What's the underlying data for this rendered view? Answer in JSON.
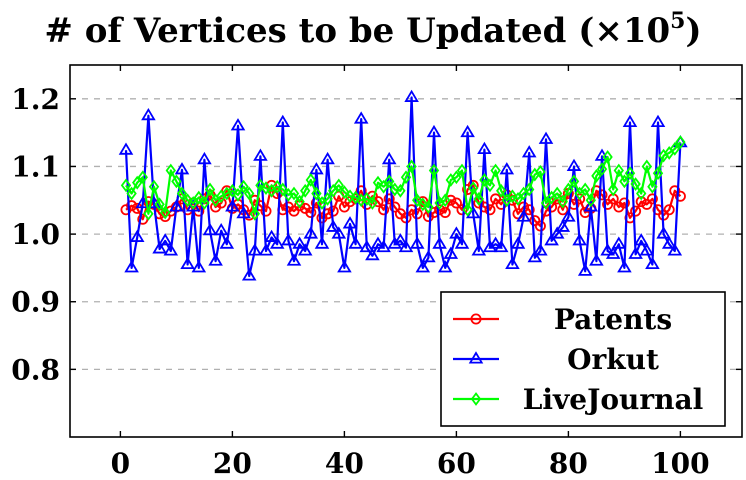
{
  "chart_data": {
    "type": "line",
    "title": "# of Vertices to be Updated (×10",
    "title_sup": "5",
    "title_close": ")",
    "xlabel": "",
    "ylabel": "",
    "xlim": [
      -9,
      111
    ],
    "ylim": [
      0.7,
      1.25
    ],
    "xticks": [
      0,
      20,
      40,
      60,
      80,
      100
    ],
    "yticks": [
      0.8,
      0.9,
      1.0,
      1.1,
      1.2
    ],
    "ytick_labels": [
      "0.8",
      "0.9",
      "1.0",
      "1.1",
      "1.2"
    ],
    "grid": "horizontal-dashed",
    "legend_position": "bottom-right",
    "x": [
      1,
      2,
      3,
      4,
      5,
      6,
      7,
      8,
      9,
      10,
      11,
      12,
      13,
      14,
      15,
      16,
      17,
      18,
      19,
      20,
      21,
      22,
      23,
      24,
      25,
      26,
      27,
      28,
      29,
      30,
      31,
      32,
      33,
      34,
      35,
      36,
      37,
      38,
      39,
      40,
      41,
      42,
      43,
      44,
      45,
      46,
      47,
      48,
      49,
      50,
      51,
      52,
      53,
      54,
      55,
      56,
      57,
      58,
      59,
      60,
      61,
      62,
      63,
      64,
      65,
      66,
      67,
      68,
      69,
      70,
      71,
      72,
      73,
      74,
      75,
      76,
      77,
      78,
      79,
      80,
      81,
      82,
      83,
      84,
      85,
      86,
      87,
      88,
      89,
      90,
      91,
      92,
      93,
      94,
      95,
      96,
      97,
      98,
      99,
      100
    ],
    "series": [
      {
        "name": "Patents",
        "color": "#ff0000",
        "marker": "circle",
        "values": [
          1.036,
          1.042,
          1.038,
          1.022,
          1.048,
          1.044,
          1.03,
          1.026,
          1.034,
          1.04,
          1.052,
          1.036,
          1.046,
          1.034,
          1.052,
          1.058,
          1.04,
          1.046,
          1.064,
          1.038,
          1.044,
          1.036,
          1.028,
          1.05,
          1.042,
          1.034,
          1.072,
          1.06,
          1.036,
          1.04,
          1.034,
          1.042,
          1.038,
          1.032,
          1.046,
          1.024,
          1.03,
          1.034,
          1.056,
          1.04,
          1.048,
          1.052,
          1.064,
          1.044,
          1.056,
          1.048,
          1.036,
          1.052,
          1.04,
          1.03,
          1.024,
          1.036,
          1.03,
          1.048,
          1.026,
          1.032,
          1.036,
          1.032,
          1.05,
          1.046,
          1.036,
          1.066,
          1.072,
          1.046,
          1.04,
          1.036,
          1.052,
          1.044,
          1.058,
          1.05,
          1.03,
          1.04,
          1.036,
          1.02,
          1.012,
          1.034,
          1.04,
          1.052,
          1.036,
          1.06,
          1.044,
          1.052,
          1.032,
          1.038,
          1.064,
          1.058,
          1.044,
          1.052,
          1.04,
          1.046,
          1.024,
          1.034,
          1.048,
          1.044,
          1.052,
          1.036,
          1.028,
          1.036,
          1.064,
          1.056
        ]
      },
      {
        "name": "Orkut",
        "color": "#0000ff",
        "marker": "triangle",
        "values": [
          1.124,
          0.95,
          0.995,
          1.045,
          1.175,
          1.045,
          0.978,
          0.99,
          0.975,
          1.04,
          1.095,
          0.955,
          1.04,
          0.95,
          1.11,
          1.005,
          0.96,
          1.005,
          0.985,
          1.04,
          1.16,
          1.03,
          0.938,
          0.975,
          1.115,
          0.975,
          0.995,
          0.985,
          1.165,
          0.99,
          0.96,
          0.985,
          0.975,
          1.0,
          1.095,
          0.985,
          1.11,
          1.01,
          1.0,
          0.95,
          1.015,
          0.985,
          1.17,
          0.98,
          0.968,
          0.985,
          0.98,
          1.11,
          0.985,
          0.99,
          0.98,
          1.202,
          0.985,
          0.95,
          0.965,
          1.15,
          0.985,
          0.95,
          0.97,
          1.0,
          0.985,
          1.15,
          1.03,
          0.975,
          1.125,
          0.98,
          0.985,
          0.98,
          1.095,
          0.955,
          0.985,
          1.025,
          1.12,
          0.965,
          0.975,
          1.14,
          0.99,
          1.0,
          1.01,
          1.025,
          1.1,
          0.99,
          0.945,
          1.04,
          0.96,
          1.115,
          0.975,
          0.97,
          0.985,
          0.95,
          1.165,
          0.97,
          0.99,
          0.975,
          0.955,
          1.165,
          1.0,
          0.985,
          0.975,
          1.135
        ]
      },
      {
        "name": "LiveJournal",
        "color": "#00ff00",
        "marker": "diamond",
        "values": [
          1.072,
          1.06,
          1.076,
          1.084,
          1.03,
          1.07,
          1.044,
          1.032,
          1.094,
          1.078,
          1.06,
          1.05,
          1.046,
          1.054,
          1.046,
          1.066,
          1.05,
          1.056,
          1.06,
          1.064,
          1.058,
          1.07,
          1.06,
          1.03,
          1.072,
          1.068,
          1.064,
          1.07,
          1.066,
          1.058,
          1.06,
          1.048,
          1.064,
          1.08,
          1.06,
          1.046,
          1.052,
          1.064,
          1.072,
          1.062,
          1.056,
          1.054,
          1.05,
          1.052,
          1.046,
          1.076,
          1.07,
          1.078,
          1.066,
          1.064,
          1.084,
          1.1,
          1.05,
          1.044,
          1.04,
          1.094,
          1.046,
          1.05,
          1.08,
          1.084,
          1.094,
          1.036,
          1.068,
          1.052,
          1.08,
          1.072,
          1.094,
          1.064,
          1.05,
          1.056,
          1.052,
          1.06,
          1.066,
          1.088,
          1.092,
          1.046,
          1.054,
          1.06,
          1.048,
          1.066,
          1.078,
          1.06,
          1.066,
          1.05,
          1.086,
          1.096,
          1.114,
          1.066,
          1.094,
          1.078,
          1.09,
          1.074,
          1.06,
          1.1,
          1.07,
          1.09,
          1.116,
          1.12,
          1.126,
          1.136
        ]
      }
    ]
  }
}
